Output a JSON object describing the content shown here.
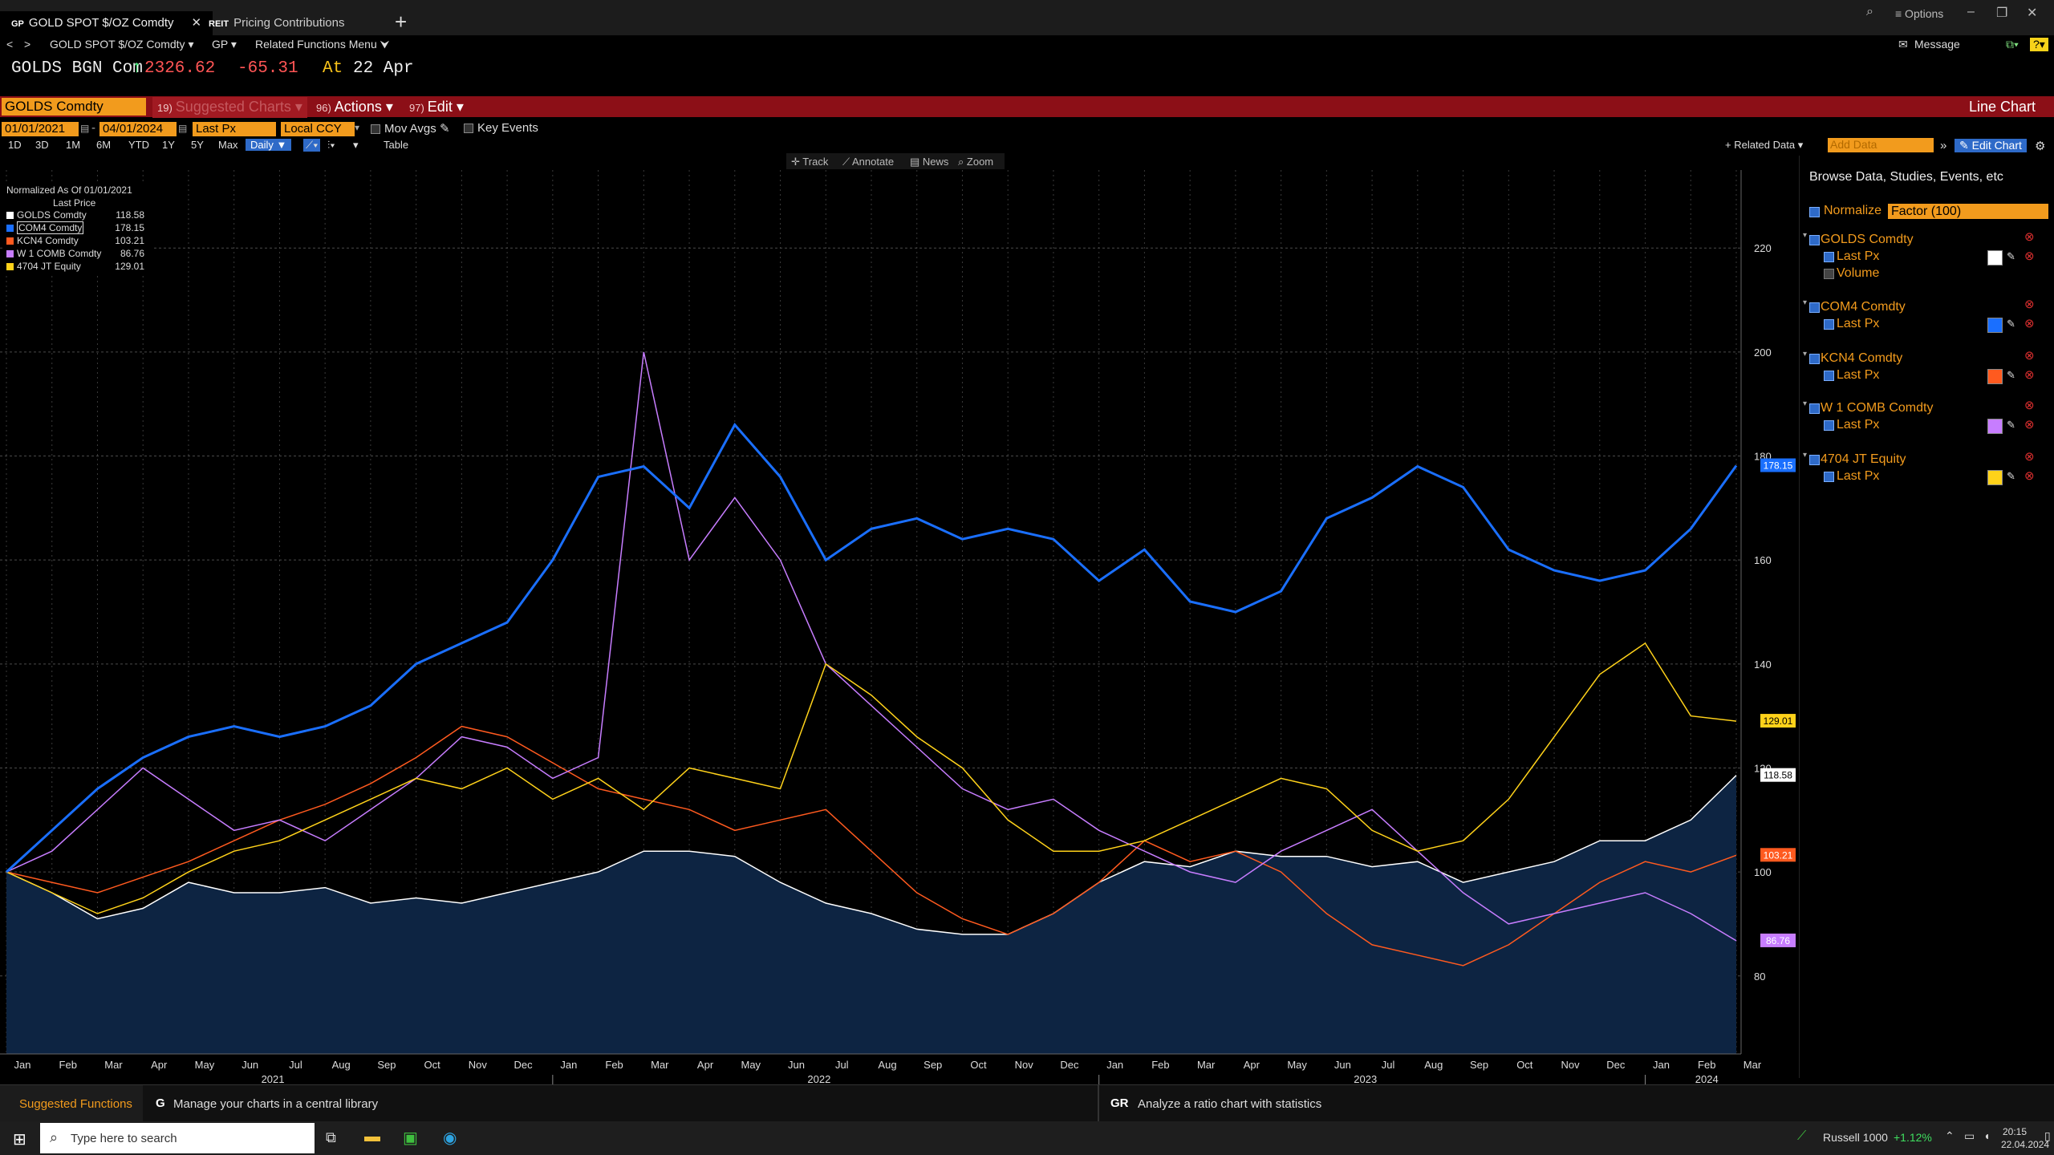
{
  "tabs": [
    {
      "badge": "GP",
      "label": "GOLD SPOT $/OZ Comdty",
      "active": true
    },
    {
      "badge": "REIT",
      "label": "Pricing Contributions",
      "active": false
    }
  ],
  "window": {
    "options_label": "≡ Options"
  },
  "funcrow": {
    "security": "GOLD SPOT $/OZ Comdty ▾",
    "function": "GP ▾",
    "related": "Related Functions Menu ⮟",
    "message": "Message"
  },
  "price": {
    "ticker": "GOLDS BGN Com",
    "arrow": "↑",
    "last": "2326.62",
    "change": "-65.31",
    "at": "At",
    "date": "22 Apr"
  },
  "titlebar": {
    "ticker": "GOLDS Comdty",
    "suggested_num": "19)",
    "suggested": "Suggested Charts",
    "actions_num": "96)",
    "actions": "Actions",
    "edit_num": "97)",
    "edit": "Edit",
    "chart_type": "Line Chart"
  },
  "controls": {
    "start_date": "01/01/2021",
    "end_date": "04/01/2024",
    "field": "Last Px",
    "currency": "Local CCY",
    "mov_avgs": "Mov Avgs",
    "key_events": "Key Events"
  },
  "ranges": [
    "1D",
    "3D",
    "1M",
    "6M",
    "YTD",
    "1Y",
    "5Y",
    "Max"
  ],
  "frequency": "Daily ▼",
  "table_label": "Table",
  "related_data": "+ Related Data ▾",
  "add_data_placeholder": "Add Data",
  "edit_chart": "Edit Chart",
  "chart_tools": [
    "Track",
    "Annotate",
    "News",
    "Zoom"
  ],
  "legend": {
    "title": "Normalized As Of 01/01/2021",
    "subtitle": "Last Price",
    "items": [
      {
        "name": "GOLDS Comdty",
        "value": "118.58",
        "color": "#ffffff"
      },
      {
        "name": "COM4 Comdty",
        "value": "178.15",
        "color": "#1a6fff"
      },
      {
        "name": "KCN4 Comdty",
        "value": "103.21",
        "color": "#ff5a1f"
      },
      {
        "name": "W 1 COMB Comdty",
        "value": "86.76",
        "color": "#c77dff"
      },
      {
        "name": "4704 JT Equity",
        "value": "129.01",
        "color": "#ffd21a"
      }
    ]
  },
  "panel": {
    "header": "Browse Data, Studies, Events, etc",
    "normalize": "Normalize",
    "factor": "Factor (100)",
    "securities": [
      {
        "name": "GOLDS Comdty",
        "fields": [
          "Last Px",
          "Volume"
        ],
        "color": "#ffffff"
      },
      {
        "name": "COM4 Comdty",
        "fields": [
          "Last Px"
        ],
        "color": "#1a6fff"
      },
      {
        "name": "KCN4 Comdty",
        "fields": [
          "Last Px"
        ],
        "color": "#ff5a1f"
      },
      {
        "name": "W 1 COMB Comdty",
        "fields": [
          "Last Px"
        ],
        "color": "#c77dff"
      },
      {
        "name": "4704 JT Equity",
        "fields": [
          "Last Px"
        ],
        "color": "#ffd21a"
      }
    ]
  },
  "chart_data": {
    "type": "line",
    "ylim": [
      65,
      235
    ],
    "y_ticks": [
      80,
      100,
      120,
      140,
      160,
      180,
      200,
      220
    ],
    "x_months": [
      "Jan",
      "Feb",
      "Mar",
      "Apr",
      "May",
      "Jun",
      "Jul",
      "Aug",
      "Sep",
      "Oct",
      "Nov",
      "Dec",
      "Jan",
      "Feb",
      "Mar",
      "Apr",
      "May",
      "Jun",
      "Jul",
      "Aug",
      "Sep",
      "Oct",
      "Nov",
      "Dec",
      "Jan",
      "Feb",
      "Mar",
      "Apr",
      "May",
      "Jun",
      "Jul",
      "Aug",
      "Sep",
      "Oct",
      "Nov",
      "Dec",
      "Jan",
      "Feb",
      "Mar"
    ],
    "x_years": [
      "2021",
      "2022",
      "2023",
      "2024"
    ],
    "series": [
      {
        "name": "GOLDS Comdty",
        "color": "#ffffff",
        "area": true,
        "values": [
          100,
          96,
          91,
          93,
          98,
          96,
          96,
          97,
          94,
          95,
          94,
          96,
          98,
          100,
          104,
          104,
          103,
          98,
          94,
          92,
          89,
          88,
          88,
          92,
          98,
          102,
          101,
          104,
          103,
          103,
          101,
          102,
          98,
          100,
          102,
          106,
          106,
          110,
          118.58
        ]
      },
      {
        "name": "COM4 Comdty",
        "color": "#1a6fff",
        "values": [
          100,
          108,
          116,
          122,
          126,
          128,
          126,
          128,
          132,
          140,
          144,
          148,
          160,
          176,
          178,
          170,
          186,
          176,
          160,
          166,
          168,
          164,
          166,
          164,
          156,
          162,
          152,
          150,
          154,
          168,
          172,
          178,
          174,
          162,
          158,
          156,
          158,
          166,
          178.15
        ]
      },
      {
        "name": "KCN4 Comdty",
        "color": "#ff5a1f",
        "values": [
          100,
          98,
          96,
          99,
          102,
          106,
          110,
          113,
          117,
          122,
          128,
          126,
          121,
          116,
          114,
          112,
          108,
          110,
          112,
          104,
          96,
          91,
          88,
          92,
          98,
          106,
          102,
          104,
          100,
          92,
          86,
          84,
          82,
          86,
          92,
          98,
          102,
          100,
          103.21
        ]
      },
      {
        "name": "W 1 COMB Comdty",
        "color": "#c77dff",
        "values": [
          100,
          104,
          112,
          120,
          114,
          108,
          110,
          106,
          112,
          118,
          126,
          124,
          118,
          122,
          200,
          160,
          172,
          160,
          140,
          132,
          124,
          116,
          112,
          114,
          108,
          104,
          100,
          98,
          104,
          108,
          112,
          104,
          96,
          90,
          92,
          94,
          96,
          92,
          86.76
        ]
      },
      {
        "name": "4704 JT Equity",
        "color": "#ffd21a",
        "values": [
          100,
          96,
          92,
          95,
          100,
          104,
          106,
          110,
          114,
          118,
          116,
          120,
          114,
          118,
          112,
          120,
          118,
          116,
          140,
          134,
          126,
          120,
          110,
          104,
          104,
          106,
          110,
          114,
          118,
          116,
          108,
          104,
          106,
          114,
          126,
          138,
          144,
          130,
          129.01
        ]
      }
    ]
  },
  "bottom": {
    "suggested": "Suggested Functions",
    "tip1_key": "G",
    "tip1": "Manage your charts in a central library",
    "tip2_key": "GR",
    "tip2": "Analyze a ratio chart with statistics"
  },
  "taskbar": {
    "search": "Type here to search",
    "index": "Russell 1000",
    "index_change": "+1.12%",
    "time": "20:15",
    "date": "22.04.2024"
  }
}
